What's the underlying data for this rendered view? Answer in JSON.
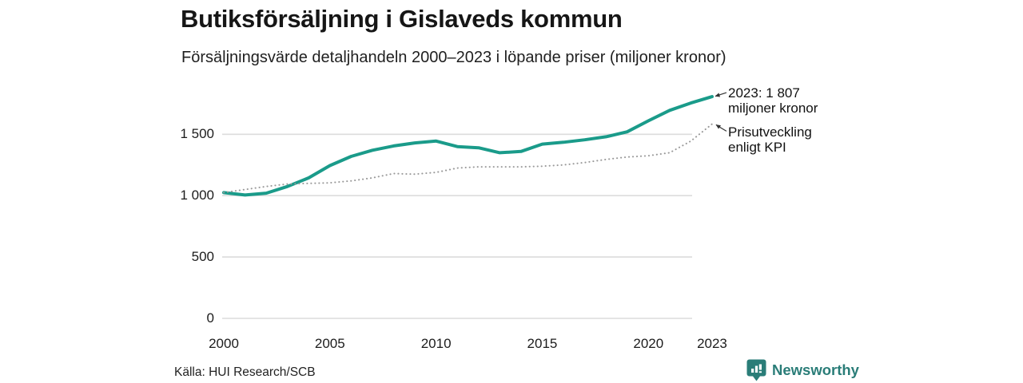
{
  "header": {
    "title": "Butiksförsäljning i Gislaveds kommun",
    "subtitle": "Försäljningsvärde detaljhandeln 2000–2023 i löpande priser (miljoner kronor)"
  },
  "chart_data": {
    "type": "line",
    "title": "Butiksförsäljning i Gislaveds kommun",
    "subtitle": "Försäljningsvärde detaljhandeln 2000–2023 i löpande priser (miljoner kronor)",
    "xlabel": "",
    "ylabel": "miljoner kronor",
    "xlim": [
      2000,
      2023
    ],
    "ylim": [
      0,
      1880
    ],
    "grid": "horizontal",
    "legend_position": "annotated-right",
    "x": [
      2000,
      2001,
      2002,
      2003,
      2004,
      2005,
      2006,
      2007,
      2008,
      2009,
      2010,
      2011,
      2012,
      2013,
      2014,
      2015,
      2016,
      2017,
      2018,
      2019,
      2020,
      2021,
      2022,
      2023
    ],
    "series": [
      {
        "name": "Försäljningsvärde i löpande priser",
        "style": "solid",
        "color": "#1a9b8a",
        "values": [
          1025,
          1005,
          1020,
          1075,
          1145,
          1245,
          1320,
          1370,
          1405,
          1430,
          1445,
          1400,
          1390,
          1350,
          1360,
          1420,
          1435,
          1455,
          1480,
          1520,
          1610,
          1695,
          1755,
          1807
        ]
      },
      {
        "name": "Prisutveckling enligt KPI",
        "style": "dotted",
        "color": "#999999",
        "values": [
          1025,
          1050,
          1075,
          1095,
          1100,
          1105,
          1120,
          1145,
          1180,
          1175,
          1190,
          1225,
          1235,
          1235,
          1235,
          1240,
          1250,
          1270,
          1295,
          1315,
          1325,
          1350,
          1445,
          1584
        ]
      }
    ],
    "yticks": [
      {
        "value": 1500,
        "label": "1 500"
      },
      {
        "value": 1000,
        "label": "1 000"
      },
      {
        "value": 500,
        "label": "500"
      },
      {
        "value": 0,
        "label": "0"
      }
    ],
    "xticks": [
      {
        "value": 2000,
        "label": "2000"
      },
      {
        "value": 2005,
        "label": "2005"
      },
      {
        "value": 2010,
        "label": "2010"
      },
      {
        "value": 2015,
        "label": "2015"
      },
      {
        "value": 2020,
        "label": "2020"
      },
      {
        "value": 2023,
        "label": "2023"
      }
    ],
    "annotations": [
      {
        "lines": [
          "2023: 1 807",
          "miljoner kronor"
        ],
        "target_series": 0
      },
      {
        "lines": [
          "Prisutveckling",
          "enligt KPI"
        ],
        "target_series": 1
      }
    ]
  },
  "footer": {
    "source": "Källa: HUI Research/SCB",
    "logo_text": "Newsworthy"
  },
  "colors": {
    "accent_teal": "#1a9b8a",
    "kpi_gray": "#999999",
    "grid_gray": "#dcdcdc",
    "logo_teal": "#2a7d78",
    "text_dark": "#1a1a1a"
  }
}
